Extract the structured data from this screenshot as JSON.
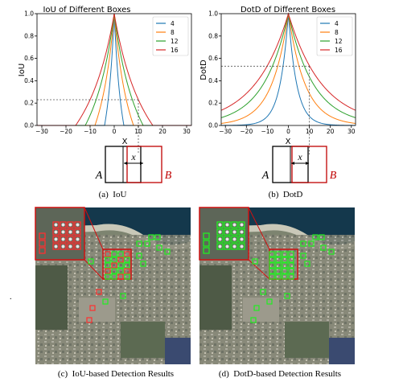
{
  "stray_mark": ".",
  "panels": {
    "a": {
      "caption": "(a)  IoU",
      "box_labels": {
        "left": "A",
        "right": "B",
        "offset": "x"
      }
    },
    "b": {
      "caption": "(b)  DotD",
      "box_labels": {
        "left": "A",
        "right": "B",
        "offset": "x"
      }
    },
    "c": {
      "caption": "(c)  IoU-based Detection Results"
    },
    "d": {
      "caption": "(d)  DotD-based Detection Results"
    }
  },
  "colors": {
    "series": [
      "#1f77b4",
      "#ff7f0e",
      "#2ca02c",
      "#d62728"
    ],
    "box_a": "#000000",
    "box_b": "#c00000",
    "detection_iou_missed": "#ff3030",
    "detection_found": "#22ee22",
    "zoom_frame": "#d01010"
  },
  "chart_data": [
    {
      "type": "line",
      "title": "IoU of Different Boxes",
      "xlabel": "X",
      "ylabel": "IoU",
      "xlim": [
        -32,
        32
      ],
      "ylim": [
        0,
        1
      ],
      "xticks": [
        "-30",
        "-20",
        "-10",
        "0",
        "10",
        "20",
        "30"
      ],
      "yticks": [
        "0.0",
        "0.2",
        "0.4",
        "0.6",
        "0.8",
        "1.0"
      ],
      "legend_position": "top-right",
      "series": [
        {
          "name": "4",
          "box_size": 4
        },
        {
          "name": "8",
          "box_size": 8
        },
        {
          "name": "12",
          "box_size": 12
        },
        {
          "name": "16",
          "box_size": 16
        }
      ],
      "reference": {
        "x": 10,
        "y": 0.23
      }
    },
    {
      "type": "line",
      "title": "DotD of Different Boxes",
      "xlabel": "X",
      "ylabel": "DotD",
      "xlim": [
        -32,
        32
      ],
      "ylim": [
        0,
        1
      ],
      "xticks": [
        "-30",
        "-20",
        "-10",
        "0",
        "10",
        "20",
        "30"
      ],
      "yticks": [
        "0.0",
        "0.2",
        "0.4",
        "0.6",
        "0.8",
        "1.0"
      ],
      "legend_position": "top-right",
      "series": [
        {
          "name": "4",
          "decay": 4
        },
        {
          "name": "8",
          "decay": 8
        },
        {
          "name": "12",
          "decay": 12
        },
        {
          "name": "16",
          "decay": 16
        }
      ],
      "reference": {
        "x": 10,
        "y": 0.53
      }
    }
  ]
}
